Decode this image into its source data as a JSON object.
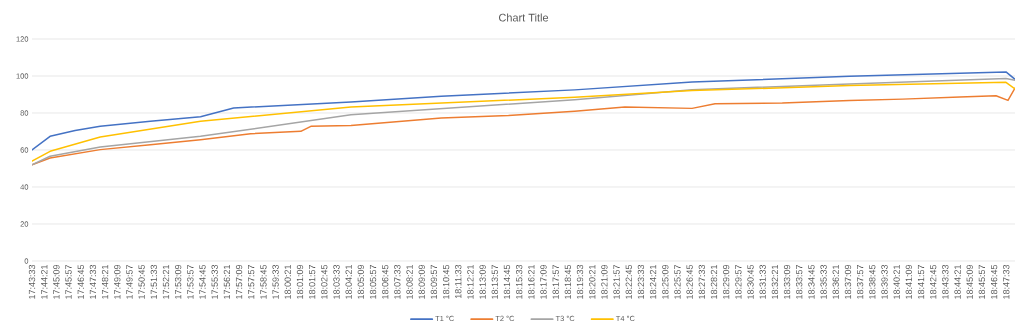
{
  "chart_data": {
    "type": "line",
    "title": "Chart Title",
    "xlim": [
      17.7258,
      18.8021
    ],
    "ylim": [
      0,
      120
    ],
    "yticks": [
      0,
      20,
      40,
      60,
      80,
      100,
      120
    ],
    "xticks": [
      {
        "value": 17.7258,
        "label": "17:43:33"
      },
      {
        "value": 17.7392,
        "label": "17:44:21"
      },
      {
        "value": 17.7525,
        "label": "17:45:09"
      },
      {
        "value": 17.7658,
        "label": "17:45:57"
      },
      {
        "value": 17.7792,
        "label": "17:46:45"
      },
      {
        "value": 17.7925,
        "label": "17:47:33"
      },
      {
        "value": 17.8058,
        "label": "17:48:21"
      },
      {
        "value": 17.8192,
        "label": "17:49:09"
      },
      {
        "value": 17.8325,
        "label": "17:49:57"
      },
      {
        "value": 17.8458,
        "label": "17:50:45"
      },
      {
        "value": 17.8592,
        "label": "17:51:33"
      },
      {
        "value": 17.8725,
        "label": "17:52:21"
      },
      {
        "value": 17.8858,
        "label": "17:53:09"
      },
      {
        "value": 17.8992,
        "label": "17:53:57"
      },
      {
        "value": 17.9125,
        "label": "17:54:45"
      },
      {
        "value": 17.9258,
        "label": "17:55:33"
      },
      {
        "value": 17.9392,
        "label": "17:56:21"
      },
      {
        "value": 17.9525,
        "label": "17:57:09"
      },
      {
        "value": 17.9658,
        "label": "17:57:57"
      },
      {
        "value": 17.9792,
        "label": "17:58:45"
      },
      {
        "value": 17.9925,
        "label": "17:59:33"
      },
      {
        "value": 18.0058,
        "label": "18:00:21"
      },
      {
        "value": 18.0192,
        "label": "18:01:09"
      },
      {
        "value": 18.0325,
        "label": "18:01:57"
      },
      {
        "value": 18.0458,
        "label": "18:02:45"
      },
      {
        "value": 18.0592,
        "label": "18:03:33"
      },
      {
        "value": 18.0725,
        "label": "18:04:21"
      },
      {
        "value": 18.0858,
        "label": "18:05:09"
      },
      {
        "value": 18.0992,
        "label": "18:05:57"
      },
      {
        "value": 18.1125,
        "label": "18:06:45"
      },
      {
        "value": 18.1258,
        "label": "18:07:33"
      },
      {
        "value": 18.1392,
        "label": "18:08:21"
      },
      {
        "value": 18.1525,
        "label": "18:09:09"
      },
      {
        "value": 18.1658,
        "label": "18:09:57"
      },
      {
        "value": 18.1792,
        "label": "18:10:45"
      },
      {
        "value": 18.1925,
        "label": "18:11:33"
      },
      {
        "value": 18.2058,
        "label": "18:12:21"
      },
      {
        "value": 18.2192,
        "label": "18:13:09"
      },
      {
        "value": 18.2325,
        "label": "18:13:57"
      },
      {
        "value": 18.2458,
        "label": "18:14:45"
      },
      {
        "value": 18.2592,
        "label": "18:15:33"
      },
      {
        "value": 18.2725,
        "label": "18:16:21"
      },
      {
        "value": 18.2858,
        "label": "18:17:09"
      },
      {
        "value": 18.2992,
        "label": "18:17:57"
      },
      {
        "value": 18.3125,
        "label": "18:18:45"
      },
      {
        "value": 18.3258,
        "label": "18:19:33"
      },
      {
        "value": 18.3392,
        "label": "18:20:21"
      },
      {
        "value": 18.3525,
        "label": "18:21:09"
      },
      {
        "value": 18.3658,
        "label": "18:21:57"
      },
      {
        "value": 18.3792,
        "label": "18:22:45"
      },
      {
        "value": 18.3925,
        "label": "18:23:33"
      },
      {
        "value": 18.4058,
        "label": "18:24:21"
      },
      {
        "value": 18.4192,
        "label": "18:25:09"
      },
      {
        "value": 18.4325,
        "label": "18:25:57"
      },
      {
        "value": 18.4458,
        "label": "18:26:45"
      },
      {
        "value": 18.4592,
        "label": "18:27:33"
      },
      {
        "value": 18.4725,
        "label": "18:28:21"
      },
      {
        "value": 18.4858,
        "label": "18:29:09"
      },
      {
        "value": 18.4992,
        "label": "18:29:57"
      },
      {
        "value": 18.5125,
        "label": "18:30:45"
      },
      {
        "value": 18.5258,
        "label": "18:31:33"
      },
      {
        "value": 18.5392,
        "label": "18:32:21"
      },
      {
        "value": 18.5525,
        "label": "18:33:09"
      },
      {
        "value": 18.5658,
        "label": "18:33:57"
      },
      {
        "value": 18.5792,
        "label": "18:34:45"
      },
      {
        "value": 18.5925,
        "label": "18:35:33"
      },
      {
        "value": 18.6058,
        "label": "18:36:21"
      },
      {
        "value": 18.6192,
        "label": "18:37:09"
      },
      {
        "value": 18.6325,
        "label": "18:37:57"
      },
      {
        "value": 18.6458,
        "label": "18:38:45"
      },
      {
        "value": 18.6592,
        "label": "18:39:33"
      },
      {
        "value": 18.6725,
        "label": "18:40:21"
      },
      {
        "value": 18.6858,
        "label": "18:41:09"
      },
      {
        "value": 18.6992,
        "label": "18:41:57"
      },
      {
        "value": 18.7125,
        "label": "18:42:45"
      },
      {
        "value": 18.7258,
        "label": "18:43:33"
      },
      {
        "value": 18.7392,
        "label": "18:44:21"
      },
      {
        "value": 18.7525,
        "label": "18:45:09"
      },
      {
        "value": 18.7658,
        "label": "18:45:57"
      },
      {
        "value": 18.7792,
        "label": "18:46:45"
      },
      {
        "value": 18.7925,
        "label": "18:47:33"
      }
    ],
    "grid": "y",
    "legend": "bottom",
    "marker": "none",
    "line_style": "solid",
    "series": [
      {
        "name": "T1 °C",
        "color": "#4472c4",
        "x": [
          17.7258,
          17.7456,
          17.773,
          17.8005,
          17.8554,
          17.9103,
          17.9466,
          18.075,
          18.1739,
          18.32,
          18.4485,
          18.6209,
          18.7922,
          18.8021
        ],
        "values": [
          60,
          67.4,
          70.5,
          72.8,
          75.5,
          78,
          82.7,
          86,
          89,
          92.5,
          96.8,
          99.8,
          102.2,
          98.2
        ]
      },
      {
        "name": "T2 °C",
        "color": "#ed7d31",
        "x": [
          17.7258,
          17.7456,
          17.8005,
          17.8554,
          17.9103,
          17.9652,
          18.0201,
          18.0311,
          18.075,
          18.1739,
          18.2475,
          18.32,
          18.3749,
          18.4485,
          18.4737,
          18.5473,
          18.6209,
          18.6791,
          18.7417,
          18.7813,
          18.7944,
          18.8021
        ],
        "values": [
          52,
          55.7,
          60.2,
          62.9,
          65.6,
          68.8,
          70.1,
          72.8,
          73.2,
          77.3,
          78.6,
          80.9,
          83.2,
          82.5,
          85,
          85.4,
          86.7,
          87.5,
          88.6,
          89.3,
          86.8,
          93.5
        ]
      },
      {
        "name": "T3 °C",
        "color": "#a5a5a5",
        "x": [
          17.7258,
          17.7456,
          17.8005,
          17.9103,
          18.075,
          18.32,
          18.4485,
          18.6209,
          18.7922,
          18.8021
        ],
        "values": [
          52,
          56.6,
          61.6,
          67.4,
          79,
          87.2,
          92.6,
          95.7,
          98.6,
          97.7
        ]
      },
      {
        "name": "T4 °C",
        "color": "#ffc000",
        "x": [
          17.7258,
          17.7456,
          17.8005,
          17.9103,
          18.075,
          18.32,
          18.4485,
          18.6209,
          18.7922,
          18.8021
        ],
        "values": [
          54,
          59.3,
          67,
          75.5,
          83.2,
          88.5,
          92.1,
          94.8,
          96.6,
          93
        ]
      }
    ]
  }
}
